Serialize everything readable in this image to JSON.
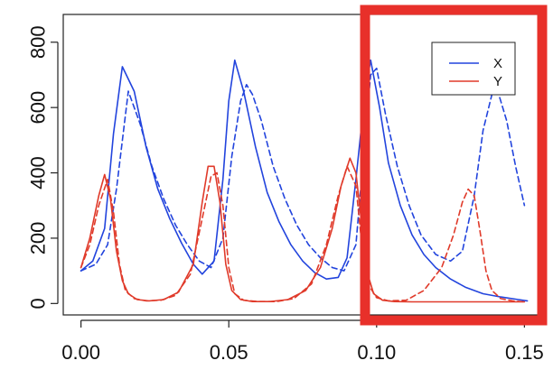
{
  "chart_data": {
    "type": "line",
    "title": "",
    "xlabel": "",
    "ylabel": "",
    "xlim": [
      -0.006,
      0.156
    ],
    "ylim": [
      -35,
      885
    ],
    "x_ticks": [
      {
        "value": 0.0,
        "label": "0.00"
      },
      {
        "value": 0.05,
        "label": "0.05"
      },
      {
        "value": 0.1,
        "label": "0.10"
      },
      {
        "value": 0.15,
        "label": "0.15"
      }
    ],
    "y_ticks": [
      {
        "value": 0,
        "label": "0"
      },
      {
        "value": 200,
        "label": "200"
      },
      {
        "value": 400,
        "label": "400"
      },
      {
        "value": 600,
        "label": "600"
      },
      {
        "value": 800,
        "label": "800"
      }
    ],
    "grid": false,
    "legend": {
      "position": "top-right",
      "entries": [
        {
          "label": "X",
          "color": "#2244dd"
        },
        {
          "label": "Y",
          "color": "#e03a2a"
        }
      ]
    },
    "series": [
      {
        "variable": "X",
        "style": "solid",
        "color": "#2244dd",
        "x": [
          0.0,
          0.004,
          0.008,
          0.011,
          0.014,
          0.018,
          0.022,
          0.026,
          0.03,
          0.034,
          0.038,
          0.041,
          0.045,
          0.048,
          0.05,
          0.052,
          0.055,
          0.059,
          0.063,
          0.067,
          0.071,
          0.075,
          0.079,
          0.083,
          0.087,
          0.09,
          0.093,
          0.096,
          0.098,
          0.101,
          0.104,
          0.108,
          0.112,
          0.116,
          0.12,
          0.125,
          0.13,
          0.136,
          0.142,
          0.148,
          0.151
        ],
        "y": [
          100,
          130,
          230,
          520,
          725,
          650,
          480,
          350,
          260,
          185,
          120,
          90,
          130,
          380,
          620,
          745,
          650,
          480,
          340,
          250,
          180,
          130,
          95,
          75,
          80,
          140,
          380,
          640,
          745,
          600,
          430,
          300,
          210,
          150,
          110,
          75,
          50,
          30,
          20,
          12,
          8
        ]
      },
      {
        "variable": "X",
        "style": "dashed",
        "color": "#2244dd",
        "x": [
          0.0,
          0.005,
          0.009,
          0.012,
          0.016,
          0.02,
          0.024,
          0.028,
          0.032,
          0.036,
          0.04,
          0.044,
          0.048,
          0.051,
          0.054,
          0.056,
          0.058,
          0.061,
          0.065,
          0.069,
          0.073,
          0.077,
          0.081,
          0.085,
          0.089,
          0.093,
          0.096,
          0.098,
          0.1,
          0.103,
          0.107,
          0.111,
          0.115,
          0.12,
          0.125,
          0.129,
          0.133,
          0.136,
          0.139,
          0.141,
          0.144,
          0.147,
          0.15
        ],
        "y": [
          100,
          120,
          180,
          350,
          650,
          550,
          420,
          320,
          240,
          180,
          130,
          110,
          200,
          450,
          620,
          670,
          640,
          560,
          420,
          320,
          240,
          180,
          140,
          110,
          100,
          180,
          500,
          700,
          720,
          580,
          420,
          300,
          210,
          150,
          130,
          160,
          330,
          530,
          640,
          650,
          560,
          420,
          300
        ]
      },
      {
        "variable": "Y",
        "style": "solid",
        "color": "#e03a2a",
        "x": [
          0.0,
          0.003,
          0.006,
          0.008,
          0.01,
          0.012,
          0.014,
          0.016,
          0.019,
          0.023,
          0.028,
          0.033,
          0.038,
          0.041,
          0.043,
          0.045,
          0.047,
          0.049,
          0.051,
          0.054,
          0.058,
          0.064,
          0.07,
          0.076,
          0.081,
          0.085,
          0.088,
          0.091,
          0.093,
          0.095,
          0.097,
          0.099,
          0.102,
          0.106,
          0.112,
          0.12,
          0.13,
          0.14,
          0.15
        ],
        "y": [
          110,
          200,
          330,
          395,
          320,
          160,
          70,
          30,
          12,
          8,
          12,
          35,
          120,
          310,
          420,
          420,
          310,
          120,
          40,
          12,
          6,
          6,
          12,
          40,
          110,
          230,
          360,
          445,
          400,
          240,
          90,
          30,
          10,
          6,
          5,
          5,
          5,
          5,
          5
        ]
      },
      {
        "variable": "Y",
        "style": "dashed",
        "color": "#e03a2a",
        "x": [
          0.0,
          0.003,
          0.006,
          0.009,
          0.011,
          0.013,
          0.015,
          0.018,
          0.022,
          0.027,
          0.032,
          0.037,
          0.041,
          0.044,
          0.046,
          0.048,
          0.05,
          0.052,
          0.055,
          0.06,
          0.066,
          0.072,
          0.078,
          0.083,
          0.087,
          0.09,
          0.093,
          0.095,
          0.097,
          0.1,
          0.104,
          0.11,
          0.116,
          0.122,
          0.126,
          0.129,
          0.131,
          0.133,
          0.135,
          0.137,
          0.139,
          0.142,
          0.146,
          0.15
        ],
        "y": [
          110,
          180,
          300,
          380,
          280,
          120,
          40,
          15,
          8,
          10,
          25,
          90,
          260,
          390,
          400,
          300,
          110,
          30,
          10,
          6,
          6,
          15,
          60,
          180,
          330,
          420,
          360,
          180,
          60,
          18,
          8,
          10,
          40,
          110,
          210,
          310,
          350,
          330,
          220,
          100,
          40,
          15,
          8,
          5
        ]
      }
    ]
  }
}
